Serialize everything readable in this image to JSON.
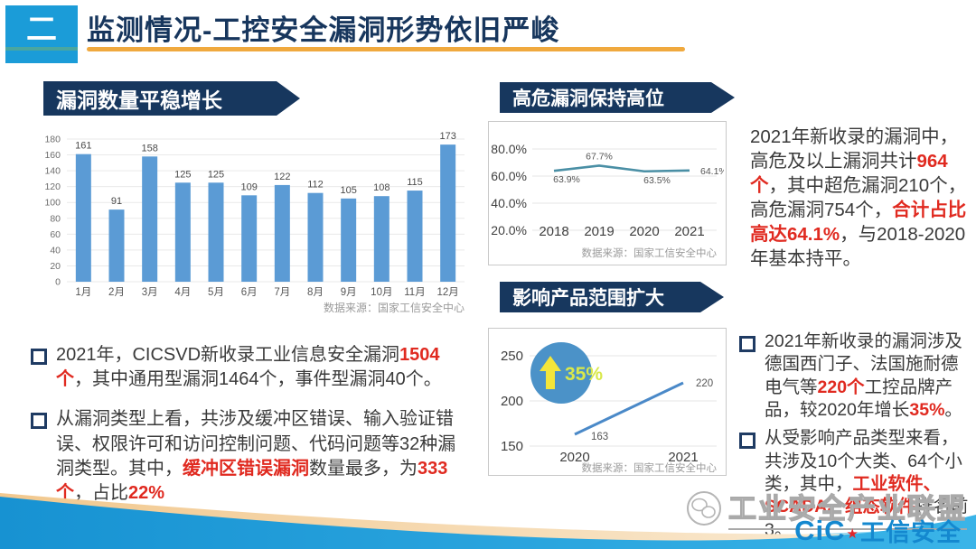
{
  "colors": {
    "red": "#e02a20",
    "navy_banner": "#17375e",
    "title_blue": "#17365d",
    "header_box_blue": "#1b9cd8",
    "underline_orange": "#f0a93e",
    "bar_blue": "#5b9bd5",
    "line1_teal": "#4a8fa5",
    "line2_blue": "#4a89c8",
    "badge_circle_blue": "#4b92c8",
    "badge_text_yellow": "#d9e84b",
    "arrow_yellow": "#f3e53a",
    "logo_blue": "#1488cf"
  },
  "header": {
    "index_glyph": "二",
    "title": "监测情况-工控安全漏洞形势依旧严峻"
  },
  "banners": {
    "left": "漏洞数量平稳增长",
    "right_top": "高危漏洞保持高位",
    "right_bottom": "影响产品范围扩大"
  },
  "chart_data": [
    {
      "id": "monthly-vuln-bars",
      "type": "bar",
      "title": "漏洞数量平稳增长",
      "categories": [
        "1月",
        "2月",
        "3月",
        "4月",
        "5月",
        "6月",
        "7月",
        "8月",
        "9月",
        "10月",
        "11月",
        "12月"
      ],
      "values": [
        161,
        91,
        158,
        125,
        125,
        109,
        122,
        112,
        105,
        108,
        115,
        173
      ],
      "ylim": [
        0,
        180
      ],
      "yticks": [
        0,
        20,
        40,
        60,
        80,
        100,
        120,
        140,
        160,
        180
      ],
      "grid": true,
      "bar_color": "#5b9bd5",
      "source": "数据来源：国家工信安全中心"
    },
    {
      "id": "high-risk-ratio-line",
      "type": "line",
      "title": "高危漏洞保持高位",
      "x": [
        "2018",
        "2019",
        "2020",
        "2021"
      ],
      "values": [
        63.9,
        67.7,
        63.5,
        64.1
      ],
      "point_labels": [
        "63.9%",
        "67.7%",
        "63.5%",
        "64.1%"
      ],
      "label_pos": [
        "below",
        "above",
        "below",
        "right"
      ],
      "ylim": [
        20,
        80
      ],
      "yticks": [
        "80.0%",
        "60.0%",
        "40.0%",
        "20.0%"
      ],
      "grid": true,
      "line_color": "#4a8fa5",
      "source": "数据来源：国家工信安全中心"
    },
    {
      "id": "affected-products-line",
      "type": "line",
      "title": "影响产品范围扩大",
      "x": [
        "2020",
        "2021"
      ],
      "values": [
        163,
        220
      ],
      "point_labels": [
        "163",
        "220"
      ],
      "ylim": [
        150,
        250
      ],
      "yticks": [
        250,
        200,
        150
      ],
      "grid": true,
      "line_color": "#4a89c8",
      "badge": {
        "text": "35%",
        "shape": "circle-with-up-arrow"
      },
      "source": "数据来源：国家工信安全中心"
    }
  ],
  "paragraphs": {
    "left_bullets": [
      {
        "segments": [
          {
            "t": "2021年，CICSVD新收录工业信息安全漏洞",
            "h": false
          },
          {
            "t": "1504个",
            "h": true
          },
          {
            "t": "，其中通用型漏洞1464个，事件型漏洞40个。",
            "h": false
          }
        ]
      },
      {
        "segments": [
          {
            "t": "从漏洞类型上看，共涉及缓冲区错误、输入验证错误、权限许可和访问控制问题、代码问题等32种漏洞类型。其中，",
            "h": false
          },
          {
            "t": "缓冲区错误漏洞",
            "h": true
          },
          {
            "t": "数量最多，为",
            "h": false
          },
          {
            "t": "333个",
            "h": true
          },
          {
            "t": "，占比",
            "h": false
          },
          {
            "t": "22%",
            "h": true
          }
        ]
      }
    ],
    "right_top_text": {
      "segments": [
        {
          "t": "2021年新收录的漏洞中，高危及以上漏洞共计",
          "h": false
        },
        {
          "t": "964个",
          "h": true
        },
        {
          "t": "，其中超危漏洞210个，高危漏洞754个，",
          "h": false
        },
        {
          "t": "合计占比高达64.1%",
          "h": true
        },
        {
          "t": "，与2018-2020年基本持平。",
          "h": false
        }
      ]
    },
    "right_bottom_bullets": [
      {
        "segments": [
          {
            "t": "2021年新收录的漏洞涉及德国西门子、法国施耐德电气等",
            "h": false
          },
          {
            "t": "220个",
            "h": true
          },
          {
            "t": "工控品牌产品，较2020年增长",
            "h": false
          },
          {
            "t": "35%",
            "h": true
          },
          {
            "t": "。",
            "h": false
          }
        ]
      },
      {
        "segments": [
          {
            "t": "从受影响产品类型来看，共涉及10个大类、64个小类，其中，",
            "h": false
          },
          {
            "t": "工业软件、SCADA、组态软件",
            "h": true
          },
          {
            "t": "排名前3。",
            "h": false
          }
        ]
      }
    ]
  },
  "footer": {
    "watermark": "工业安全产业联盟",
    "logo_cic": "CiC",
    "logo_star": "★",
    "logo_text": "工信安全"
  }
}
